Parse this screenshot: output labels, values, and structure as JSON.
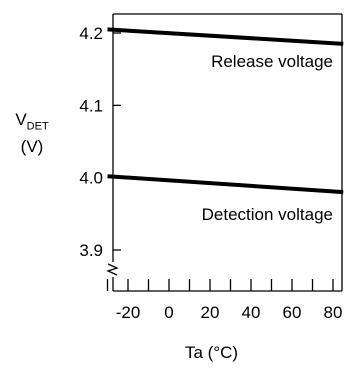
{
  "chart_data": {
    "type": "line",
    "title": "",
    "ylabel": {
      "main": "V",
      "subscript": "DET",
      "unit": "(V)"
    },
    "xlabel": "Ta (°C)",
    "xlim": [
      -30,
      85
    ],
    "ylim": [
      3.85,
      4.22
    ],
    "xticks": [
      -20,
      0,
      20,
      40,
      60,
      80
    ],
    "yticks": [
      3.9,
      4.0,
      4.1,
      4.2
    ],
    "grid": false,
    "axis_break": "y-axis, below 3.9",
    "series": [
      {
        "name": "Release voltage",
        "x": [
          -30,
          85
        ],
        "y": [
          4.205,
          4.185
        ],
        "color": "#000000"
      },
      {
        "name": "Detection voltage",
        "x": [
          -30,
          85
        ],
        "y": [
          4.002,
          3.98
        ],
        "color": "#000000"
      }
    ]
  }
}
